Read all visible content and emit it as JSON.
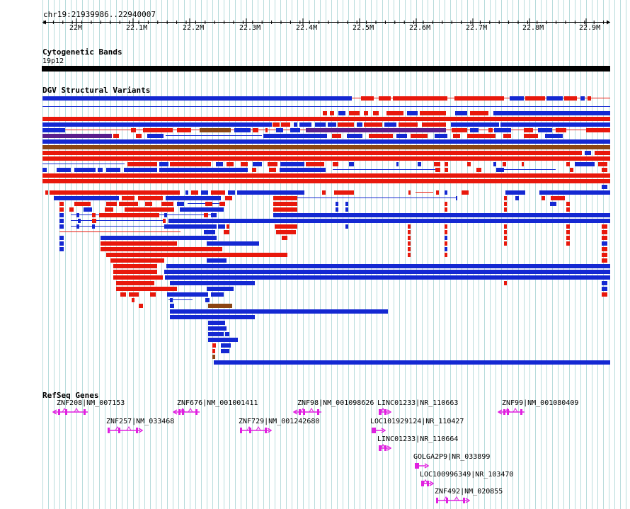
{
  "header": {
    "region": "chr19:21939986..22940007"
  },
  "ruler": {
    "ticks": [
      "22M",
      "22.1M",
      "22.2M",
      "22.3M",
      "22.4M",
      "22.5M",
      "22.6M",
      "22.7M",
      "22.8M",
      "22.9M"
    ]
  },
  "tracks": {
    "cytoband": {
      "title": "Cytogenetic Bands",
      "band": "19p12",
      "color": "#000000"
    },
    "dgv": {
      "title": "DGV Structural Variants",
      "colors": {
        "loss": "#e8180c",
        "gain": "#1428d2",
        "complex": "#8b4513",
        "inversion": "#5a1e8c"
      }
    },
    "refseq": {
      "title": "RefSeq Genes",
      "color": "#e020e0",
      "genes": [
        {
          "label": "ZNF208|NM_007153"
        },
        {
          "label": "ZNF257|NM_033468"
        },
        {
          "label": "ZNF676|NM_001001411"
        },
        {
          "label": "ZNF729|NM_001242680"
        },
        {
          "label": "ZNF98|NM_001098626"
        },
        {
          "label": "LINC01233|NR_110663"
        },
        {
          "label": "LOC101929124|NR_110427"
        },
        {
          "label": "LINC01233|NR_110664"
        },
        {
          "label": "GOLGA2P9|NR_033899"
        },
        {
          "label": "LOC100996349|NR_103470"
        },
        {
          "label": "ZNF492|NM_020855"
        },
        {
          "label": "ZNF99|NM_001080409"
        }
      ]
    }
  },
  "colors": {
    "grid": "#b8dcdc",
    "background": "#ffffff"
  }
}
